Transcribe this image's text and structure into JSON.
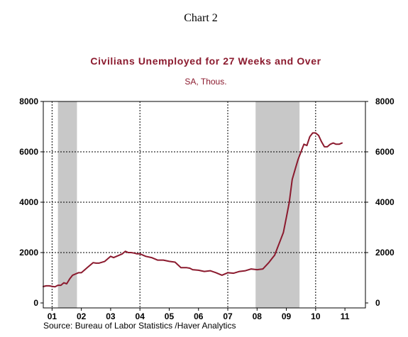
{
  "page_label": "Chart 2",
  "chart_data": {
    "type": "line",
    "title": "Civilians Unemployed for 27 Weeks and Over",
    "subtitle": "SA, Thous.",
    "source": "Source:  Bureau of Labor Statistics /Haver Analytics",
    "x_tick_labels": [
      "01",
      "02",
      "03",
      "04",
      "05",
      "06",
      "07",
      "08",
      "09",
      "10",
      "11"
    ],
    "x_range_years": [
      2000.7,
      2011.7
    ],
    "ylim": [
      0,
      8000
    ],
    "y_ticks": [
      0,
      2000,
      4000,
      6000,
      8000
    ],
    "y_tick_labels": [
      "0",
      "2000",
      "4000",
      "6000",
      "8000"
    ],
    "grid": "dashed",
    "axes": "left-and-right",
    "vertical_gridlines_years": [
      2001,
      2004,
      2007,
      2010
    ],
    "recessions": [
      {
        "start": 2001.2,
        "end": 2001.85
      },
      {
        "start": 2007.95,
        "end": 2009.45
      }
    ],
    "colors": {
      "line": "#8b1a2e",
      "recession": "#c8c8c8",
      "title": "#8b1a2e"
    },
    "series": [
      {
        "x": [
          2000.7,
          2000.8,
          2000.9,
          2001.0,
          2001.1,
          2001.2,
          2001.3,
          2001.4,
          2001.5,
          2001.6,
          2001.7,
          2001.8,
          2001.9,
          2002.0,
          2002.2,
          2002.4,
          2002.5,
          2002.6,
          2002.8,
          2003.0,
          2003.1,
          2003.2,
          2003.3,
          2003.4,
          2003.5,
          2003.6,
          2003.7,
          2003.8,
          2003.9,
          2004.0,
          2004.2,
          2004.4,
          2004.6,
          2004.8,
          2005.0,
          2005.2,
          2005.4,
          2005.6,
          2005.7,
          2005.8,
          2006.0,
          2006.2,
          2006.4,
          2006.6,
          2006.8,
          2007.0,
          2007.2,
          2007.4,
          2007.6,
          2007.8,
          2008.0,
          2008.2,
          2008.4,
          2008.5,
          2008.6,
          2008.7,
          2008.8,
          2008.9,
          2009.0,
          2009.1,
          2009.2,
          2009.3,
          2009.4,
          2009.5,
          2009.6,
          2009.7,
          2009.8,
          2009.9,
          2010.0,
          2010.1,
          2010.2,
          2010.3,
          2010.4,
          2010.5,
          2010.6,
          2010.7,
          2010.8,
          2010.9
        ],
        "values": [
          650,
          680,
          680,
          660,
          640,
          700,
          700,
          800,
          760,
          950,
          1100,
          1150,
          1200,
          1200,
          1400,
          1600,
          1580,
          1580,
          1650,
          1850,
          1800,
          1850,
          1900,
          1950,
          2050,
          2000,
          2000,
          1980,
          1950,
          1950,
          1850,
          1800,
          1700,
          1700,
          1650,
          1620,
          1400,
          1400,
          1380,
          1320,
          1300,
          1250,
          1280,
          1200,
          1100,
          1200,
          1180,
          1250,
          1280,
          1350,
          1320,
          1350,
          1600,
          1750,
          1900,
          2200,
          2500,
          2800,
          3400,
          4000,
          4900,
          5300,
          5700,
          6000,
          6300,
          6250,
          6600,
          6750,
          6750,
          6650,
          6400,
          6200,
          6200,
          6300,
          6350,
          6300,
          6300,
          6350
        ]
      }
    ]
  }
}
